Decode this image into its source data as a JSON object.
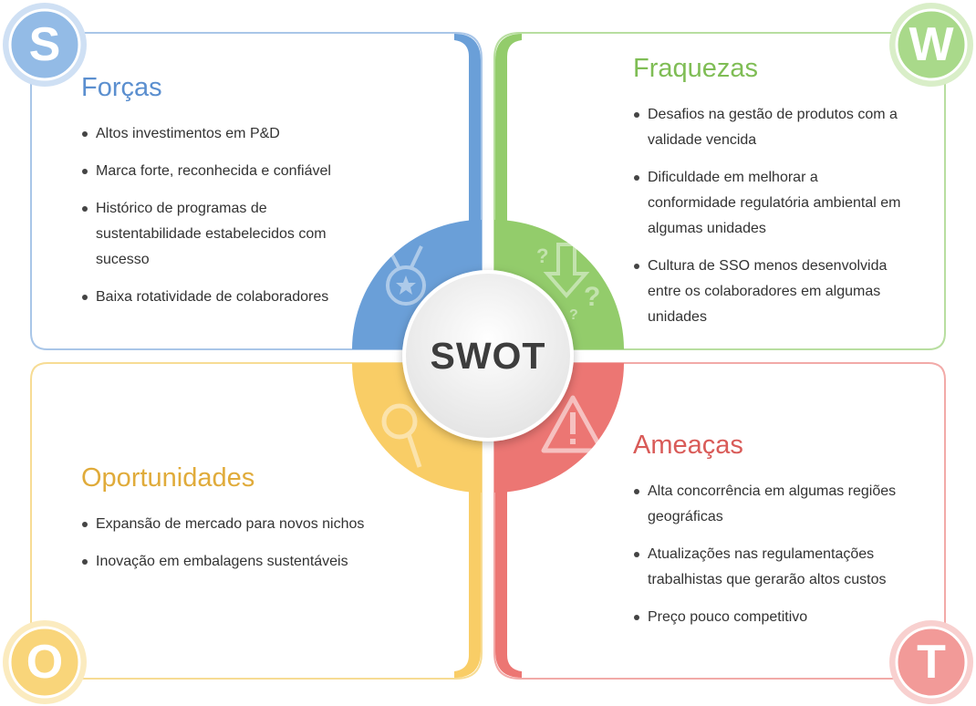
{
  "center": "SWOT",
  "colors": {
    "s": "#6a9fd8",
    "w": "#93cc6b",
    "o": "#f9cd66",
    "t": "#ec7673"
  },
  "quadrants": {
    "s": {
      "letter": "S",
      "title": "Forças",
      "icon": "medal-icon",
      "items": [
        "Altos investimentos em P&D",
        "Marca forte, reconhecida e confiável",
        "Histórico de programas de sustentabilidade estabelecidos com sucesso",
        "Baixa rotatividade de colaboradores"
      ]
    },
    "w": {
      "letter": "W",
      "title": "Fraquezas",
      "icon": "down-arrow-question-icon",
      "items": [
        "Desafios na gestão de produtos com a validade vencida",
        "Dificuldade em melhorar a conformidade regulatória ambiental em algumas unidades",
        "Cultura de SSO menos desenvolvida entre os colaboradores em algumas unidades"
      ]
    },
    "o": {
      "letter": "O",
      "title": "Oportunidades",
      "icon": "magnifier-icon",
      "items": [
        "Expansão de mercado para novos nichos",
        "Inovação em embalagens sustentáveis"
      ]
    },
    "t": {
      "letter": "T",
      "title": "Ameaças",
      "icon": "warning-icon",
      "items": [
        "Alta concorrência em algumas regiões geográficas",
        "Atualizações nas regulamentações trabalhistas que gerarão altos custos",
        "Preço pouco competitivo"
      ]
    }
  }
}
